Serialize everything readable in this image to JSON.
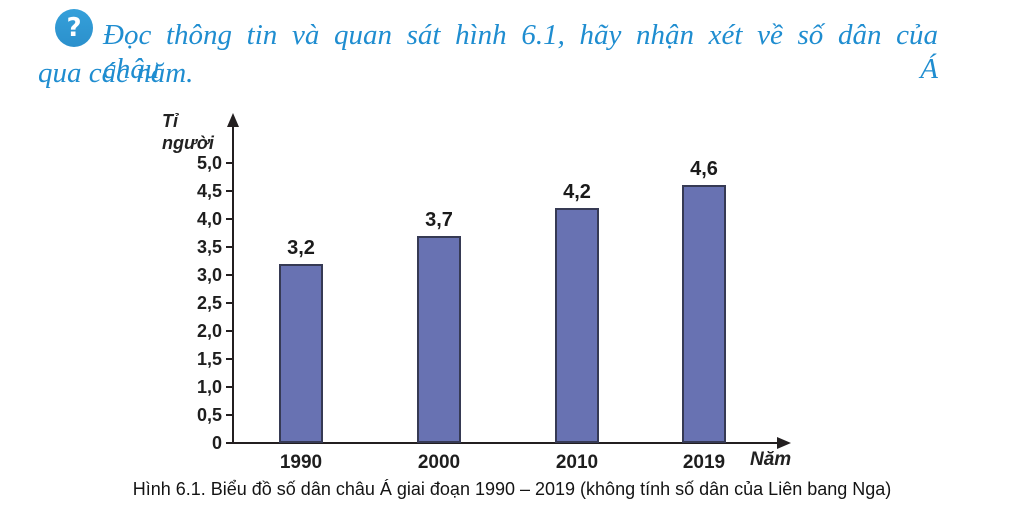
{
  "question": {
    "icon_glyph": "?",
    "icon_color": "#35a0da",
    "text_color": "#1f8dd0",
    "line1": "Đọc thông tin và quan sát hình 6.1, hãy nhận xét về số dân của châu Á",
    "line2": "qua các năm."
  },
  "chart_data": {
    "type": "bar",
    "title": "",
    "ylabel": "Tỉ người",
    "xlabel": "Năm",
    "categories": [
      "1990",
      "2000",
      "2010",
      "2019"
    ],
    "values": [
      3.2,
      3.7,
      4.2,
      4.6
    ],
    "value_labels": [
      "3,2",
      "3,7",
      "4,2",
      "4,6"
    ],
    "ylim": [
      0,
      5.5
    ],
    "yticks": [
      0,
      0.5,
      1.0,
      1.5,
      2.0,
      2.5,
      3.0,
      3.5,
      4.0,
      4.5,
      5.0
    ],
    "ytick_labels": [
      "0",
      "0,5",
      "1,0",
      "1,5",
      "2,0",
      "2,5",
      "3,0",
      "3,5",
      "4,0",
      "4,5",
      "5,0"
    ],
    "grid": false,
    "legend": "none",
    "bar_color": "#6872b2",
    "bar_border_color": "#363a54",
    "axis_color": "#231f20"
  },
  "caption": "Hình 6.1. Biểu đồ số dân châu Á giai đoạn 1990 – 2019 (không tính số dân của Liên bang Nga)"
}
